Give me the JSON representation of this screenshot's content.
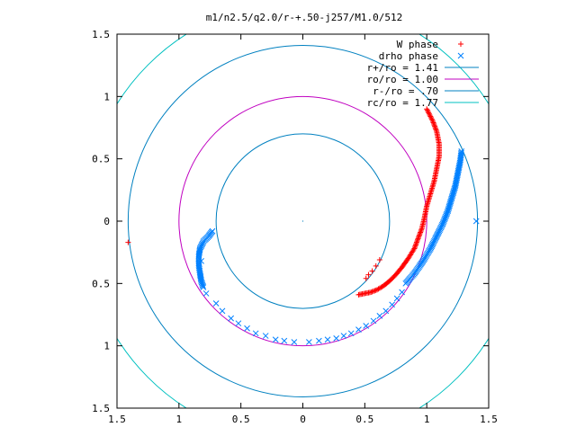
{
  "chart_data": {
    "type": "scatter",
    "title": "m1/n2.5/q2.0/r-+.50-j257/M1.0/512",
    "xlabel": "",
    "ylabel": "",
    "xlim": [
      -1.5,
      1.5
    ],
    "ylim": [
      -1.5,
      1.5
    ],
    "grid": false,
    "legend_placement": "top-right",
    "x_ticks": [
      {
        "value": -1.5,
        "label": "1.5"
      },
      {
        "value": -1.0,
        "label": "1"
      },
      {
        "value": -0.5,
        "label": "0.5"
      },
      {
        "value": 0.0,
        "label": "0"
      },
      {
        "value": 0.5,
        "label": "0.5"
      },
      {
        "value": 1.0,
        "label": "1"
      },
      {
        "value": 1.5,
        "label": "1.5"
      }
    ],
    "y_ticks": [
      {
        "value": 1.5,
        "label": "1.5"
      },
      {
        "value": 1.0,
        "label": "1"
      },
      {
        "value": 0.5,
        "label": "0.5"
      },
      {
        "value": 0.0,
        "label": "0"
      },
      {
        "value": -0.5,
        "label": "0.5"
      },
      {
        "value": -1.0,
        "label": "1"
      },
      {
        "value": -1.5,
        "label": "1.5"
      }
    ],
    "series": [
      {
        "name": "W phase",
        "kind": "points",
        "marker": "+",
        "color": "#ff0000",
        "points": [
          [
            -1.41,
            -0.17
          ],
          [
            0.62,
            -0.31
          ],
          [
            0.59,
            -0.36
          ],
          [
            0.56,
            -0.4
          ],
          [
            0.53,
            -0.43
          ],
          [
            0.51,
            -0.46
          ]
        ],
        "curve": [
          [
            0.45,
            -0.59
          ],
          [
            0.5,
            -0.58
          ],
          [
            0.55,
            -0.57
          ],
          [
            0.6,
            -0.55
          ],
          [
            0.65,
            -0.52
          ],
          [
            0.7,
            -0.48
          ],
          [
            0.75,
            -0.43
          ],
          [
            0.8,
            -0.37
          ],
          [
            0.85,
            -0.3
          ],
          [
            0.9,
            -0.22
          ],
          [
            0.93,
            -0.14
          ],
          [
            0.96,
            -0.06
          ],
          [
            0.98,
            0.02
          ],
          [
            1.0,
            0.12
          ],
          [
            1.03,
            0.22
          ],
          [
            1.06,
            0.32
          ],
          [
            1.08,
            0.42
          ],
          [
            1.1,
            0.52
          ],
          [
            1.1,
            0.62
          ],
          [
            1.08,
            0.72
          ],
          [
            1.05,
            0.8
          ],
          [
            1.02,
            0.86
          ],
          [
            1.0,
            0.9
          ]
        ]
      },
      {
        "name": "drho phase",
        "kind": "points",
        "marker": "x",
        "color": "#0080ff",
        "points": [
          [
            1.4,
            0.0
          ],
          [
            -0.82,
            -0.32
          ],
          [
            -0.78,
            -0.58
          ],
          [
            -0.7,
            -0.66
          ],
          [
            -0.65,
            -0.72
          ],
          [
            -0.58,
            -0.78
          ],
          [
            -0.52,
            -0.82
          ],
          [
            -0.45,
            -0.86
          ],
          [
            -0.38,
            -0.9
          ],
          [
            -0.3,
            -0.92
          ],
          [
            -0.22,
            -0.95
          ],
          [
            -0.15,
            -0.96
          ],
          [
            -0.07,
            -0.97
          ],
          [
            0.05,
            -0.97
          ],
          [
            0.13,
            -0.96
          ],
          [
            0.2,
            -0.95
          ],
          [
            0.27,
            -0.94
          ],
          [
            0.33,
            -0.92
          ],
          [
            0.39,
            -0.9
          ],
          [
            0.45,
            -0.87
          ],
          [
            0.51,
            -0.84
          ],
          [
            0.57,
            -0.8
          ],
          [
            0.62,
            -0.76
          ],
          [
            0.67,
            -0.72
          ],
          [
            0.72,
            -0.67
          ],
          [
            0.76,
            -0.62
          ],
          [
            0.8,
            -0.57
          ]
        ],
        "curve": [
          [
            -0.73,
            -0.08
          ],
          [
            -0.76,
            -0.12
          ],
          [
            -0.8,
            -0.16
          ],
          [
            -0.83,
            -0.22
          ],
          [
            -0.84,
            -0.28
          ],
          [
            -0.84,
            -0.35
          ],
          [
            -0.83,
            -0.42
          ],
          [
            -0.82,
            -0.48
          ],
          [
            -0.8,
            -0.54
          ],
          [
            0.83,
            -0.5
          ],
          [
            0.9,
            -0.42
          ],
          [
            0.97,
            -0.32
          ],
          [
            1.03,
            -0.22
          ],
          [
            1.08,
            -0.12
          ],
          [
            1.13,
            -0.02
          ],
          [
            1.17,
            0.08
          ],
          [
            1.2,
            0.18
          ],
          [
            1.23,
            0.28
          ],
          [
            1.25,
            0.38
          ],
          [
            1.27,
            0.48
          ],
          [
            1.28,
            0.56
          ]
        ]
      },
      {
        "name": "r+/ro = 1.41",
        "kind": "circle",
        "radius": 1.41,
        "color": "#0080c0"
      },
      {
        "name": "ro/ro = 1.00",
        "kind": "circle",
        "radius": 1.0,
        "color": "#c000c0"
      },
      {
        "name": "r-/ro = .70",
        "kind": "circle",
        "radius": 0.7,
        "color": "#0080c0"
      },
      {
        "name": "rc/ro = 1.77",
        "kind": "circle",
        "radius": 1.77,
        "color": "#00c0c0"
      }
    ]
  }
}
